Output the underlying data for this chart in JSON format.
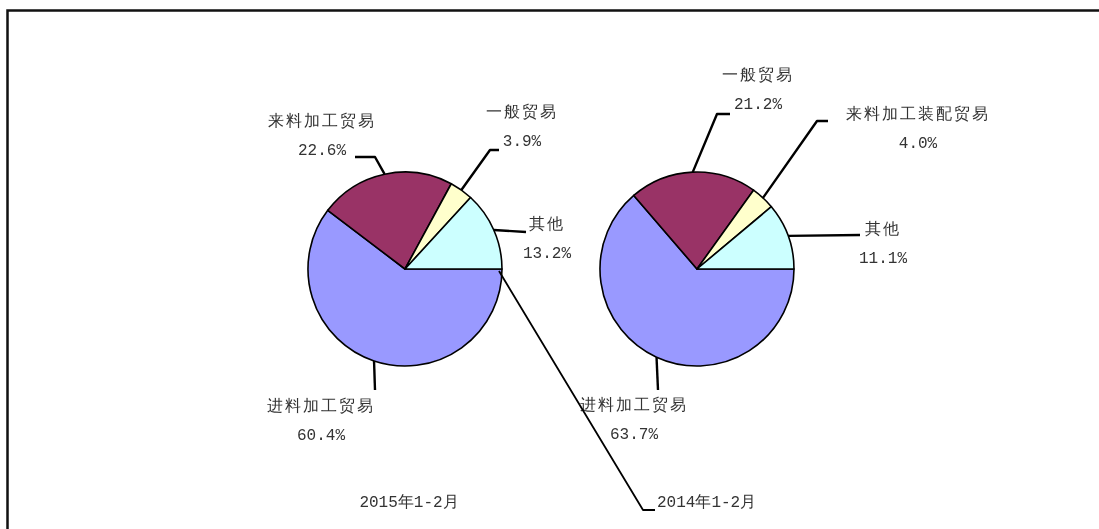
{
  "chart_data": [
    {
      "type": "pie",
      "title": "2015年1-2月",
      "categories": [
        "进料加工贸易",
        "来料加工贸易",
        "一般贸易",
        "其他"
      ],
      "values": [
        60.4,
        22.6,
        3.9,
        13.2
      ],
      "colors": [
        "#9999ff",
        "#993366",
        "#ffffcc",
        "#ccffff"
      ],
      "value_labels": [
        "60.4%",
        "22.6%",
        "3.9%",
        "13.2%"
      ]
    },
    {
      "type": "pie",
      "title": "2014年1-2月",
      "categories": [
        "进料加工贸易",
        "一般贸易",
        "来料加工装配贸易",
        "其他"
      ],
      "values": [
        63.7,
        21.2,
        4.0,
        11.1
      ],
      "colors": [
        "#9999ff",
        "#993366",
        "#ffffcc",
        "#ccffff"
      ],
      "value_labels": [
        "63.7%",
        "21.2%",
        "4.0%",
        "11.1%"
      ]
    }
  ]
}
